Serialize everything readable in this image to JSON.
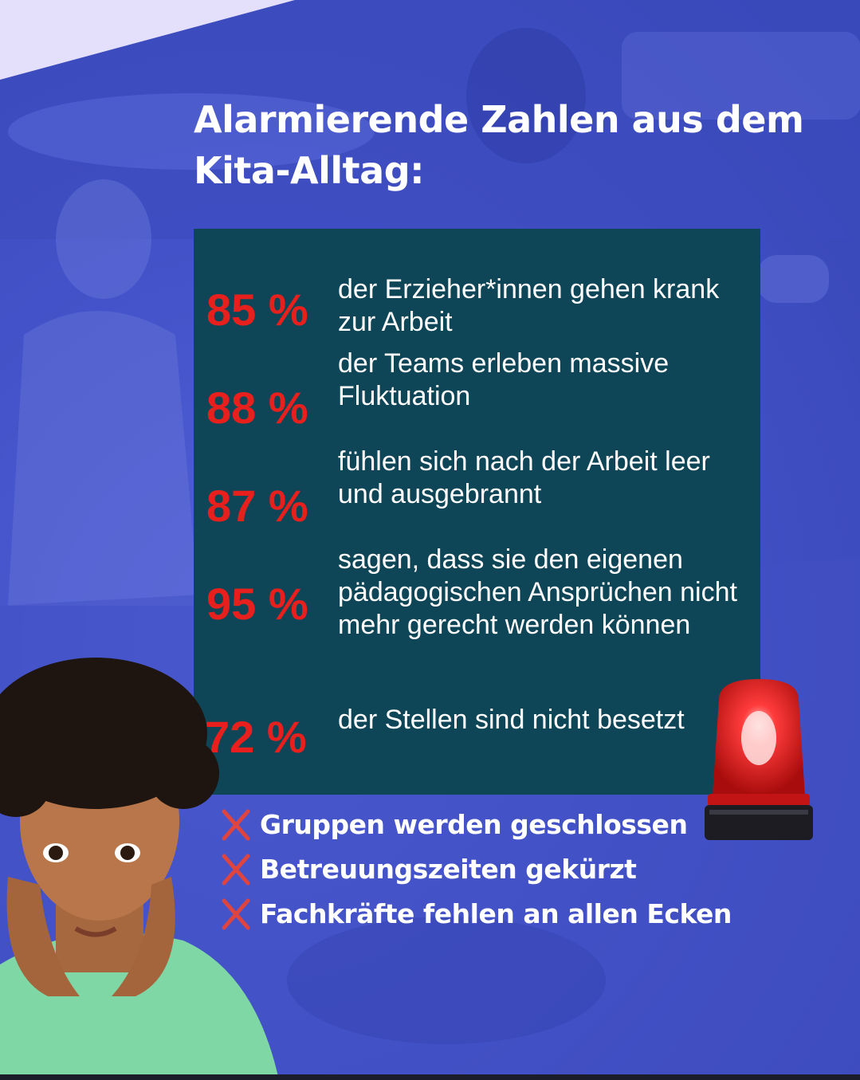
{
  "title": "Alarmierende Zahlen aus dem Kita-Alltag:",
  "stats": [
    {
      "value": "85 %",
      "text": "der Erzieher*innen gehen krank zur Arbeit"
    },
    {
      "value": "88 %",
      "text": "der Teams erleben massive Fluktuation"
    },
    {
      "value": "87 %",
      "text": "fühlen sich nach der Arbeit leer und ausgebrannt"
    },
    {
      "value": "95 %",
      "text": "sagen, dass sie den eigenen pädagogischen Ansprüchen nicht mehr gerecht werden können"
    },
    {
      "value": "72 %",
      "text": "der Stellen sind nicht besetzt"
    }
  ],
  "bullets": [
    {
      "icon": "cross-icon",
      "text": "Gruppen werden geschlossen"
    },
    {
      "icon": "cross-icon",
      "text": "Betreuungszeiten gekürzt"
    },
    {
      "icon": "cross-icon",
      "text": "Fachkräfte fehlen an allen Ecken"
    }
  ],
  "colors": {
    "background": "#4352c8",
    "panel": "#0f4657",
    "percent": "#e8201d",
    "cross": "#e0443f",
    "text": "#ffffff"
  }
}
